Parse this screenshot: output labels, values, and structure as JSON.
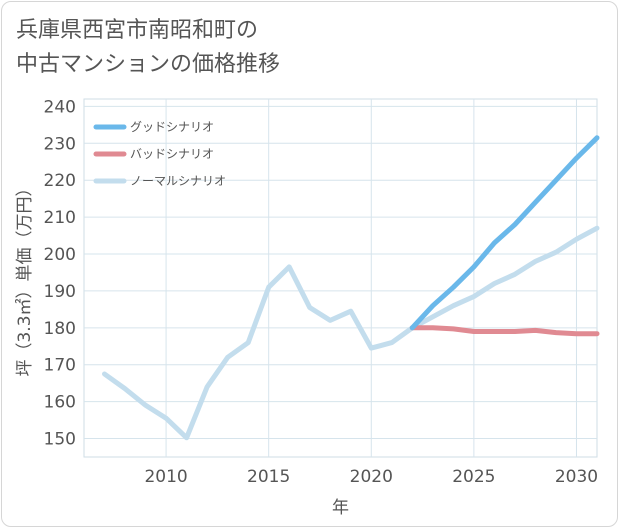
{
  "title_line1": "兵庫県西宮市南昭和町の",
  "title_line2": "中古マンションの価格推移",
  "chart_data": {
    "type": "line",
    "title": "兵庫県西宮市南昭和町の中古マンションの価格推移",
    "xlabel": "年",
    "ylabel": "坪（3.3㎡）単価（万円）",
    "xlim": [
      2006,
      2031
    ],
    "ylim": [
      145,
      242
    ],
    "xticks": [
      2010,
      2015,
      2020,
      2025,
      2030
    ],
    "yticks": [
      150,
      160,
      170,
      180,
      190,
      200,
      210,
      220,
      230,
      240
    ],
    "legend_position": "top-left",
    "series": [
      {
        "name": "グッドシナリオ",
        "color": "#6ab8ea",
        "x": [
          2022,
          2023,
          2024,
          2025,
          2026,
          2027,
          2028,
          2029,
          2030,
          2031
        ],
        "y": [
          180.0,
          186.0,
          191.0,
          196.5,
          203.0,
          208.0,
          214.0,
          220.0,
          226.0,
          231.5
        ]
      },
      {
        "name": "バッドシナリオ",
        "color": "#e08a92",
        "x": [
          2022,
          2023,
          2024,
          2025,
          2026,
          2027,
          2028,
          2029,
          2030,
          2031
        ],
        "y": [
          180.0,
          180.0,
          179.7,
          179.0,
          179.0,
          179.0,
          179.3,
          178.7,
          178.4,
          178.4
        ]
      },
      {
        "name": "ノーマルシナリオ",
        "color": "#c3dded",
        "x": [
          2007,
          2008,
          2009,
          2010,
          2011,
          2012,
          2013,
          2014,
          2015,
          2016,
          2017,
          2018,
          2019,
          2020,
          2021,
          2022,
          2023,
          2024,
          2025,
          2026,
          2027,
          2028,
          2029,
          2030,
          2031
        ],
        "y": [
          167.5,
          163.5,
          159.0,
          155.5,
          150.2,
          164.0,
          172.0,
          176.0,
          191.0,
          196.5,
          185.5,
          182.0,
          184.5,
          174.5,
          176.0,
          180.0,
          183.0,
          186.0,
          188.5,
          192.0,
          194.5,
          198.0,
          200.5,
          204.0,
          207.0
        ]
      }
    ]
  }
}
